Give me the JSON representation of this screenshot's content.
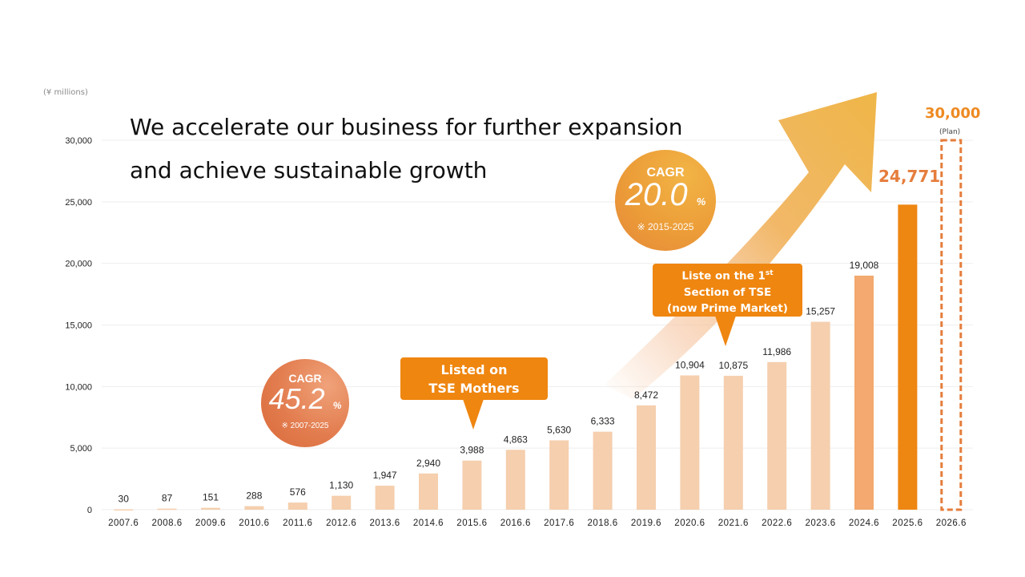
{
  "chart_data": {
    "type": "bar",
    "title": "We accelerate our business for further expansion and achieve sustainable growth",
    "title_lines": [
      "We accelerate our business for further expansion",
      "and achieve sustainable growth"
    ],
    "unit_label": "(¥ millions)",
    "xlabel": "",
    "ylabel": "",
    "ylim": [
      0,
      30000
    ],
    "yticks": [
      0,
      5000,
      10000,
      15000,
      20000,
      25000,
      30000
    ],
    "ytick_labels": [
      "0",
      "5,000",
      "10,000",
      "15,000",
      "20,000",
      "25,000",
      "30,000"
    ],
    "grid": true,
    "categories": [
      "2007.6",
      "2008.6",
      "2009.6",
      "2010.6",
      "2011.6",
      "2012.6",
      "2013.6",
      "2014.6",
      "2015.6",
      "2016.6",
      "2017.6",
      "2018.6",
      "2019.6",
      "2020.6",
      "2021.6",
      "2022.6",
      "2023.6",
      "2024.6",
      "2025.6",
      "2026.6"
    ],
    "values": [
      30,
      87,
      151,
      288,
      576,
      1130,
      1947,
      2940,
      3988,
      4863,
      5630,
      6333,
      8472,
      10904,
      10875,
      11986,
      15257,
      19008,
      24771,
      30000
    ],
    "value_labels": [
      "30",
      "87",
      "151",
      "288",
      "576",
      "1,130",
      "1,947",
      "2,940",
      "3,988",
      "4,863",
      "5,630",
      "6,333",
      "8,472",
      "10,904",
      "10,875",
      "11,986",
      "15,257",
      "19,008",
      "24,771",
      "30,000"
    ],
    "bar_colors": [
      "#f5cfae",
      "#f5cfae",
      "#f5cfae",
      "#f5cfae",
      "#f5cfae",
      "#f5cfae",
      "#f5cfae",
      "#f5cfae",
      "#f5cfae",
      "#f5cfae",
      "#f5cfae",
      "#f5cfae",
      "#f5cfae",
      "#f5cfae",
      "#f5cfae",
      "#f5cfae",
      "#f5cfae",
      "#f3a96f",
      "#ee8612",
      "none"
    ],
    "plan_index": 19,
    "plan_label": "(Plan)",
    "plan_color": "#e57d3c",
    "annotations": {
      "cagr_recent": {
        "title": "CAGR",
        "value": "20.0",
        "unit": "%",
        "range": "※ 2015-2025"
      },
      "cagr_total": {
        "title": "CAGR",
        "value": "45.2",
        "unit": "%",
        "range": "※ 2007-2025"
      },
      "listing_mothers": {
        "lines": [
          "Listed on",
          "TSE Mothers"
        ],
        "category": "2015.6"
      },
      "listing_first_section": {
        "line1": "Liste on the 1",
        "line1_sup": "st",
        "line2": "Section of TSE",
        "line3": "(now Prime Market)",
        "category": "2021.6"
      }
    },
    "colors": {
      "accent": "#ef8610",
      "light_bar": "#f5cfae",
      "mid_bar": "#f3a96f",
      "dark_bar": "#ee8612",
      "grid": "#eeeeee",
      "arrow": "#efb04a"
    }
  }
}
